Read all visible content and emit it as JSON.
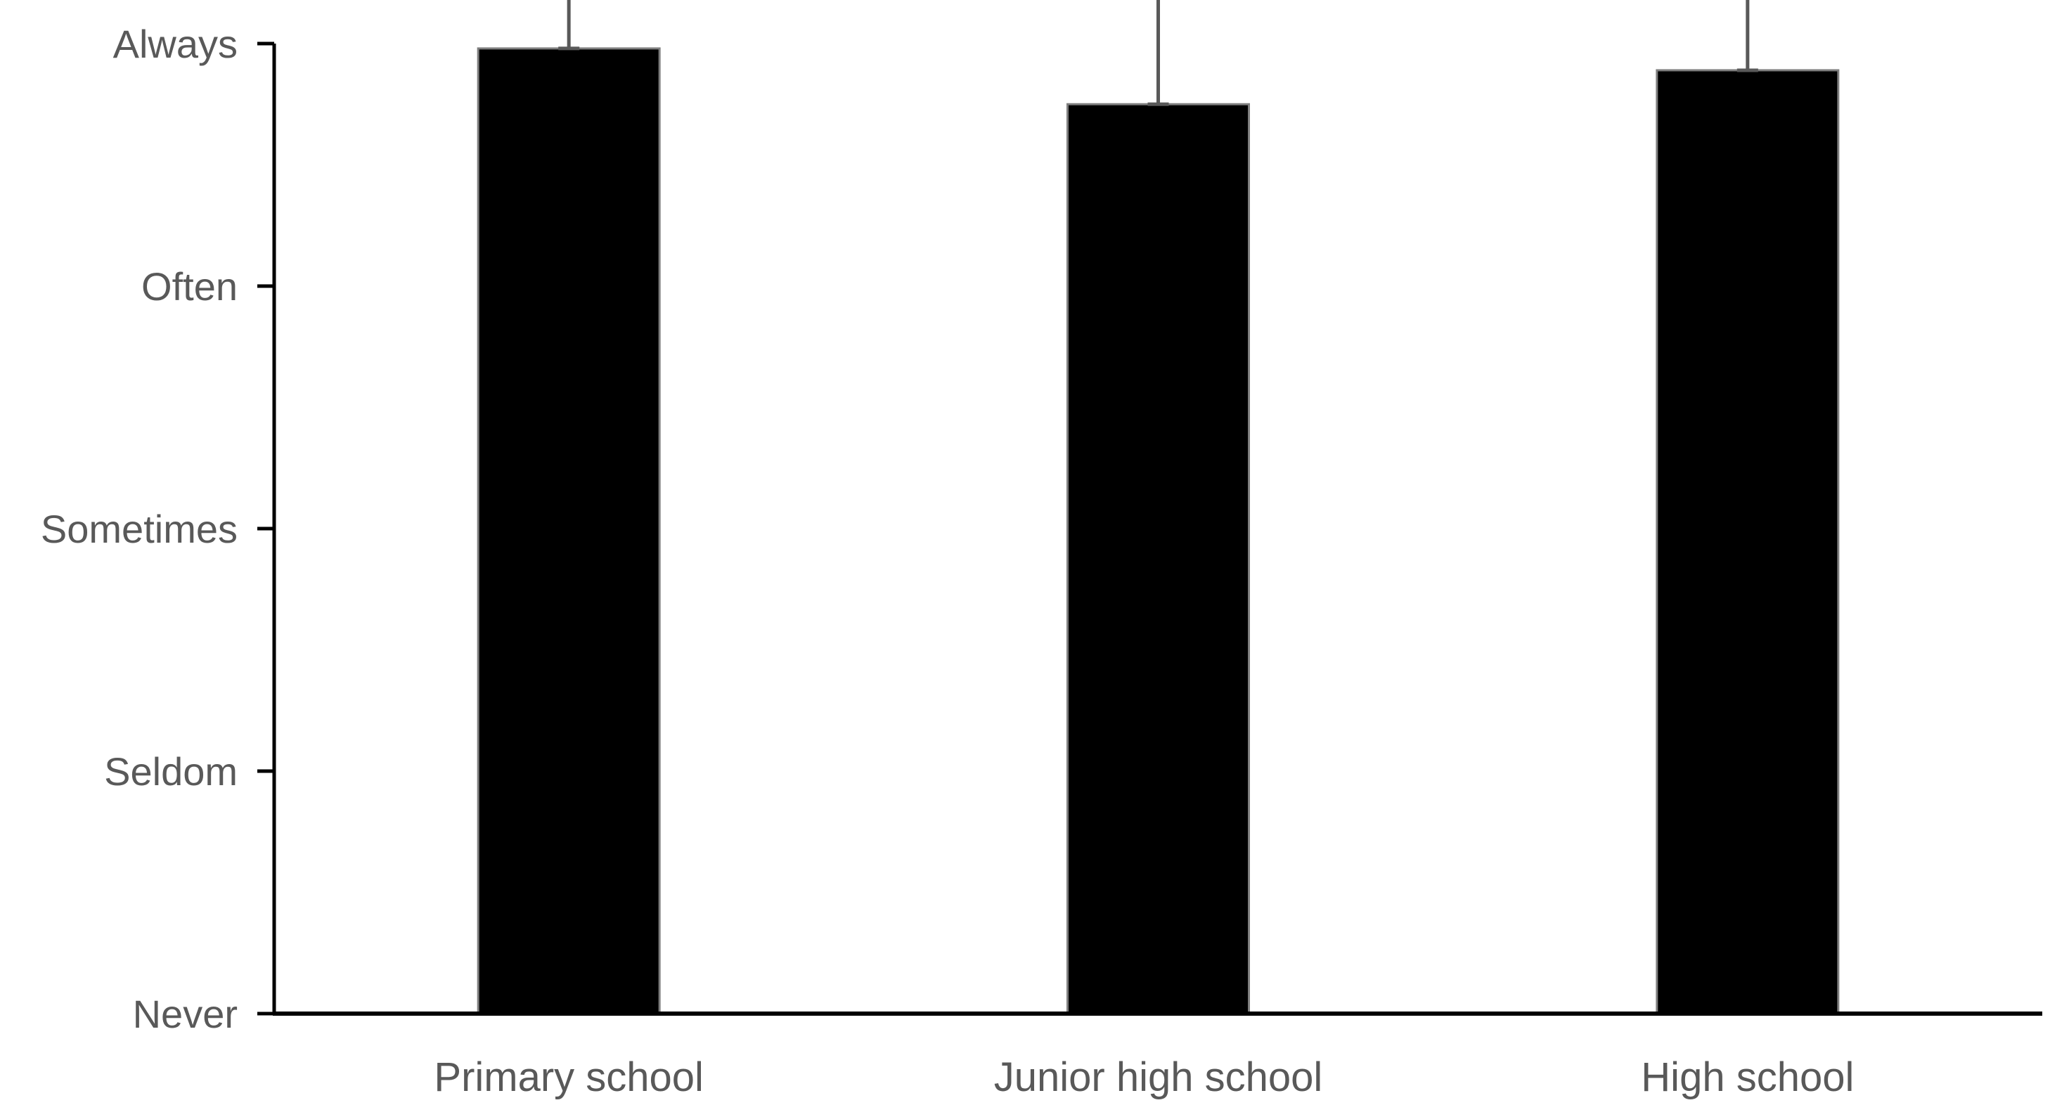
{
  "chart_data": {
    "type": "bar",
    "categories": [
      "Primary school",
      "Junior high school",
      "High school"
    ],
    "values": [
      3.98,
      3.75,
      3.89
    ],
    "error_upper": [
      0.67,
      0.66,
      0.65
    ],
    "annotations": [
      {
        "category": "Junior high school",
        "text": "*"
      }
    ],
    "ylim": [
      0,
      4
    ],
    "yticks": [
      {
        "value": 0,
        "label": "Never"
      },
      {
        "value": 1,
        "label": "Seldom"
      },
      {
        "value": 2,
        "label": "Sometimes"
      },
      {
        "value": 3,
        "label": "Often"
      },
      {
        "value": 4,
        "label": "Always"
      }
    ],
    "bar_color": "#000000",
    "error_color": "#595959",
    "axis_color": "#000000",
    "grid": false,
    "legend": "none"
  }
}
